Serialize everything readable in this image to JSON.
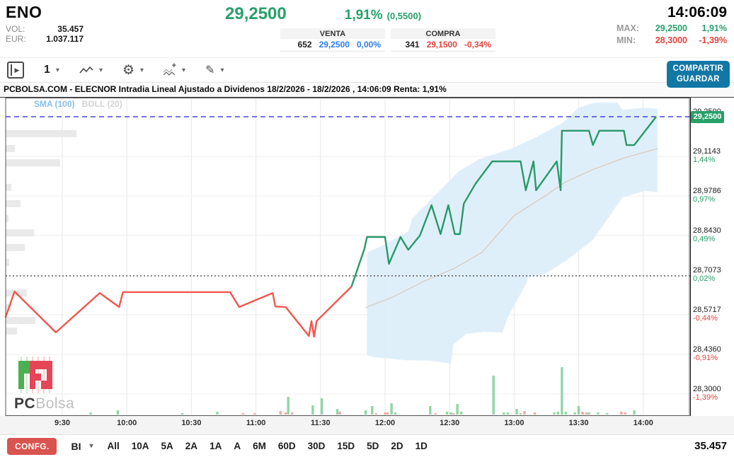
{
  "header": {
    "symbol": "ENO",
    "vol_label": "VOL:",
    "vol_value": "35.457",
    "eur_label": "EUR:",
    "eur_value": "1.037.117",
    "price": "29,2500",
    "change_pct": "1,91%",
    "change_abs": "(0,5500)",
    "time": "14:06:09",
    "venta": {
      "label": "VENTA",
      "qty": "652",
      "price": "29,2500",
      "pct": "0,00%"
    },
    "compra": {
      "label": "COMPRA",
      "qty": "341",
      "price": "29,1500",
      "pct": "-0,34%"
    },
    "max_label": "MAX:",
    "max_price": "29,2500",
    "max_pct": "1,91%",
    "min_label": "MIN:",
    "min_price": "28,3000",
    "min_pct": "-1,39%"
  },
  "toolbar": {
    "interval": "1",
    "share_label": "COMPARTIR",
    "save_label": "GUARDAR"
  },
  "chart": {
    "title": "PCBOLSA.COM - ELECNOR Intradia Lineal Ajustado a Dividenos 18/2/2026 - 18/2/2026 , 14:06:09 Renta: 1,91%",
    "legend_sma": "SMA (100)",
    "legend_boll": "BOLL (20)",
    "badge": "29,2500"
  },
  "logo": {
    "bold": "PC",
    "light": "Bolsa"
  },
  "footer": {
    "config_label": "CONFG.",
    "period": "BI",
    "ranges": [
      "All",
      "10A",
      "5A",
      "2A",
      "1A",
      "A",
      "6M",
      "60D",
      "30D",
      "15D",
      "5D",
      "2D",
      "1D"
    ],
    "total": "35.457"
  },
  "chart_data": {
    "type": "line",
    "title": "ELECNOR Intradia Lineal Ajustado a Dividenos 18/2/2026 - 18/2/2026",
    "x_ticks": [
      [
        9.5,
        "9:30"
      ],
      [
        10,
        "10:00"
      ],
      [
        10.5,
        "10:30"
      ],
      [
        11,
        "11:00"
      ],
      [
        11.5,
        "11:30"
      ],
      [
        12,
        "12:00"
      ],
      [
        12.5,
        "12:30"
      ],
      [
        13,
        "13:00"
      ],
      [
        13.5,
        "13:30"
      ],
      [
        14,
        "14:00"
      ]
    ],
    "y_axis": [
      {
        "price": 29.25,
        "label": "29,2500",
        "pct": "1,91%"
      },
      {
        "price": 29.1143,
        "label": "29,1143",
        "pct": "1,44%"
      },
      {
        "price": 28.9786,
        "label": "28,9786",
        "pct": "0,97%"
      },
      {
        "price": 28.843,
        "label": "28,8430",
        "pct": "0,49%"
      },
      {
        "price": 28.7073,
        "label": "28,7073",
        "pct": "0,02%"
      },
      {
        "price": 28.5717,
        "label": "28,5717",
        "pct": "-0,44%"
      },
      {
        "price": 28.436,
        "label": "28,4360",
        "pct": "-0,91%"
      },
      {
        "price": 28.3,
        "label": "28,3000",
        "pct": "-1,39%"
      }
    ],
    "reference_lines": {
      "current_price": 29.25,
      "base_line": 28.7073
    },
    "colors": {
      "up": "#28996a",
      "down": "#f2564d",
      "sma": "#d9cfc4",
      "band": "#dcedf9",
      "vol_up": "#90d6a4",
      "vol_down": "#f0a8a3",
      "badge_bg": "#27a06a",
      "current_line": "#2020d0",
      "base_line": "#222222"
    },
    "series": [
      {
        "name": "price-down",
        "points": [
          [
            9.06,
            28.562
          ],
          [
            9.13,
            28.651
          ],
          [
            9.45,
            28.511
          ],
          [
            9.79,
            28.646
          ],
          [
            9.94,
            28.598
          ],
          [
            9.97,
            28.649
          ],
          [
            10.8,
            28.649
          ],
          [
            10.87,
            28.598
          ],
          [
            11.13,
            28.646
          ],
          [
            11.15,
            28.6
          ],
          [
            11.23,
            28.598
          ],
          [
            11.41,
            28.499
          ],
          [
            11.43,
            28.55
          ],
          [
            11.45,
            28.496
          ],
          [
            11.47,
            28.55
          ],
          [
            11.74,
            28.668
          ]
        ]
      },
      {
        "name": "price-up",
        "points": [
          [
            11.74,
            28.668
          ],
          [
            11.84,
            28.797
          ],
          [
            11.86,
            28.838
          ],
          [
            12.0,
            28.838
          ],
          [
            12.03,
            28.746
          ],
          [
            12.12,
            28.838
          ],
          [
            12.18,
            28.794
          ],
          [
            12.27,
            28.843
          ],
          [
            12.36,
            28.947
          ],
          [
            12.43,
            28.848
          ],
          [
            12.49,
            28.947
          ],
          [
            12.54,
            28.848
          ],
          [
            12.58,
            28.848
          ],
          [
            12.61,
            28.952
          ],
          [
            12.7,
            29.02
          ],
          [
            12.83,
            29.097
          ],
          [
            13.05,
            29.097
          ],
          [
            13.09,
            28.998
          ],
          [
            13.15,
            29.097
          ],
          [
            13.17,
            28.998
          ],
          [
            13.33,
            29.097
          ],
          [
            13.36,
            28.998
          ],
          [
            13.37,
            29.202
          ],
          [
            13.58,
            29.202
          ],
          [
            13.61,
            29.153
          ],
          [
            13.66,
            29.202
          ],
          [
            13.85,
            29.202
          ],
          [
            13.87,
            29.153
          ],
          [
            13.93,
            29.153
          ],
          [
            14.1,
            29.25
          ]
        ]
      },
      {
        "name": "SMA (100)",
        "points": [
          [
            11.85,
            28.596
          ],
          [
            12.06,
            28.632
          ],
          [
            12.31,
            28.688
          ],
          [
            12.53,
            28.729
          ],
          [
            12.75,
            28.785
          ],
          [
            13.0,
            28.911
          ],
          [
            13.24,
            28.979
          ],
          [
            13.4,
            29.027
          ],
          [
            13.62,
            29.071
          ],
          [
            13.84,
            29.107
          ],
          [
            14.11,
            29.141
          ]
        ]
      }
    ],
    "bollinger": {
      "name": "BOLL (20)",
      "top": [
        [
          11.86,
          28.785
        ],
        [
          11.98,
          28.809
        ],
        [
          12.18,
          28.857
        ],
        [
          12.21,
          28.901
        ],
        [
          12.57,
          29.063
        ],
        [
          12.73,
          29.105
        ],
        [
          12.98,
          29.141
        ],
        [
          13.17,
          29.18
        ],
        [
          13.37,
          29.228
        ],
        [
          13.5,
          29.281
        ],
        [
          13.62,
          29.298
        ],
        [
          13.8,
          29.298
        ],
        [
          13.84,
          29.274
        ],
        [
          14.01,
          29.281
        ],
        [
          14.11,
          29.277
        ]
      ],
      "bottom": [
        [
          11.86,
          28.433
        ],
        [
          11.92,
          28.426
        ],
        [
          12.16,
          28.416
        ],
        [
          12.35,
          28.414
        ],
        [
          12.51,
          28.404
        ],
        [
          12.53,
          28.47
        ],
        [
          12.63,
          28.506
        ],
        [
          12.76,
          28.513
        ],
        [
          12.91,
          28.511
        ],
        [
          12.95,
          28.562
        ],
        [
          13.09,
          28.676
        ],
        [
          13.11,
          28.7
        ],
        [
          13.24,
          28.712
        ],
        [
          13.4,
          28.756
        ],
        [
          13.61,
          28.828
        ],
        [
          13.84,
          28.974
        ],
        [
          14.01,
          28.996
        ],
        [
          14.11,
          28.991
        ]
      ]
    },
    "volume": [
      [
        9.72,
        3,
        "g"
      ],
      [
        9.93,
        6,
        "g"
      ],
      [
        10.43,
        2,
        "g"
      ],
      [
        10.7,
        4,
        "g"
      ],
      [
        10.9,
        2,
        "r"
      ],
      [
        10.99,
        2,
        "r"
      ],
      [
        11.19,
        5,
        "r"
      ],
      [
        11.23,
        3,
        "r"
      ],
      [
        11.25,
        25,
        "g"
      ],
      [
        11.28,
        3,
        "r"
      ],
      [
        11.44,
        13,
        "g"
      ],
      [
        11.51,
        23,
        "g"
      ],
      [
        11.63,
        8,
        "g"
      ],
      [
        11.65,
        4,
        "r"
      ],
      [
        11.85,
        6,
        "g"
      ],
      [
        11.9,
        12,
        "g"
      ],
      [
        11.93,
        2,
        "r"
      ],
      [
        12.0,
        3,
        "r"
      ],
      [
        12.02,
        3,
        "r"
      ],
      [
        12.05,
        16,
        "g"
      ],
      [
        12.08,
        3,
        "g"
      ],
      [
        12.35,
        12,
        "g"
      ],
      [
        12.39,
        2,
        "r"
      ],
      [
        12.48,
        4,
        "g"
      ],
      [
        12.51,
        3,
        "g"
      ],
      [
        12.53,
        2,
        "r"
      ],
      [
        12.56,
        15,
        "g"
      ],
      [
        12.59,
        4,
        "g"
      ],
      [
        12.84,
        55,
        "g"
      ],
      [
        12.92,
        3,
        "g"
      ],
      [
        12.95,
        3,
        "g"
      ],
      [
        13.02,
        8,
        "g"
      ],
      [
        13.05,
        2,
        "g"
      ],
      [
        13.08,
        5,
        "r"
      ],
      [
        13.16,
        3,
        "r"
      ],
      [
        13.31,
        3,
        "g"
      ],
      [
        13.34,
        4,
        "g"
      ],
      [
        13.37,
        67,
        "g"
      ],
      [
        13.4,
        4,
        "g"
      ],
      [
        13.47,
        3,
        "g"
      ],
      [
        13.5,
        12,
        "g"
      ],
      [
        13.53,
        4,
        "r"
      ],
      [
        13.56,
        3,
        "r"
      ],
      [
        13.58,
        3,
        "g"
      ],
      [
        13.65,
        3,
        "g"
      ],
      [
        13.72,
        2,
        "g"
      ],
      [
        13.83,
        4,
        "r"
      ],
      [
        13.86,
        3,
        "r"
      ],
      [
        13.93,
        6,
        "g"
      ]
    ],
    "volume_profile": [
      [
        29.192,
        100
      ],
      [
        29.141,
        13
      ],
      [
        29.092,
        77
      ],
      [
        29.008,
        8
      ],
      [
        28.952,
        21
      ],
      [
        28.901,
        4
      ],
      [
        28.852,
        40
      ],
      [
        28.802,
        27
      ],
      [
        28.751,
        5
      ],
      [
        28.646,
        30
      ],
      [
        28.596,
        8
      ],
      [
        28.552,
        42
      ],
      [
        28.516,
        16
      ]
    ]
  }
}
